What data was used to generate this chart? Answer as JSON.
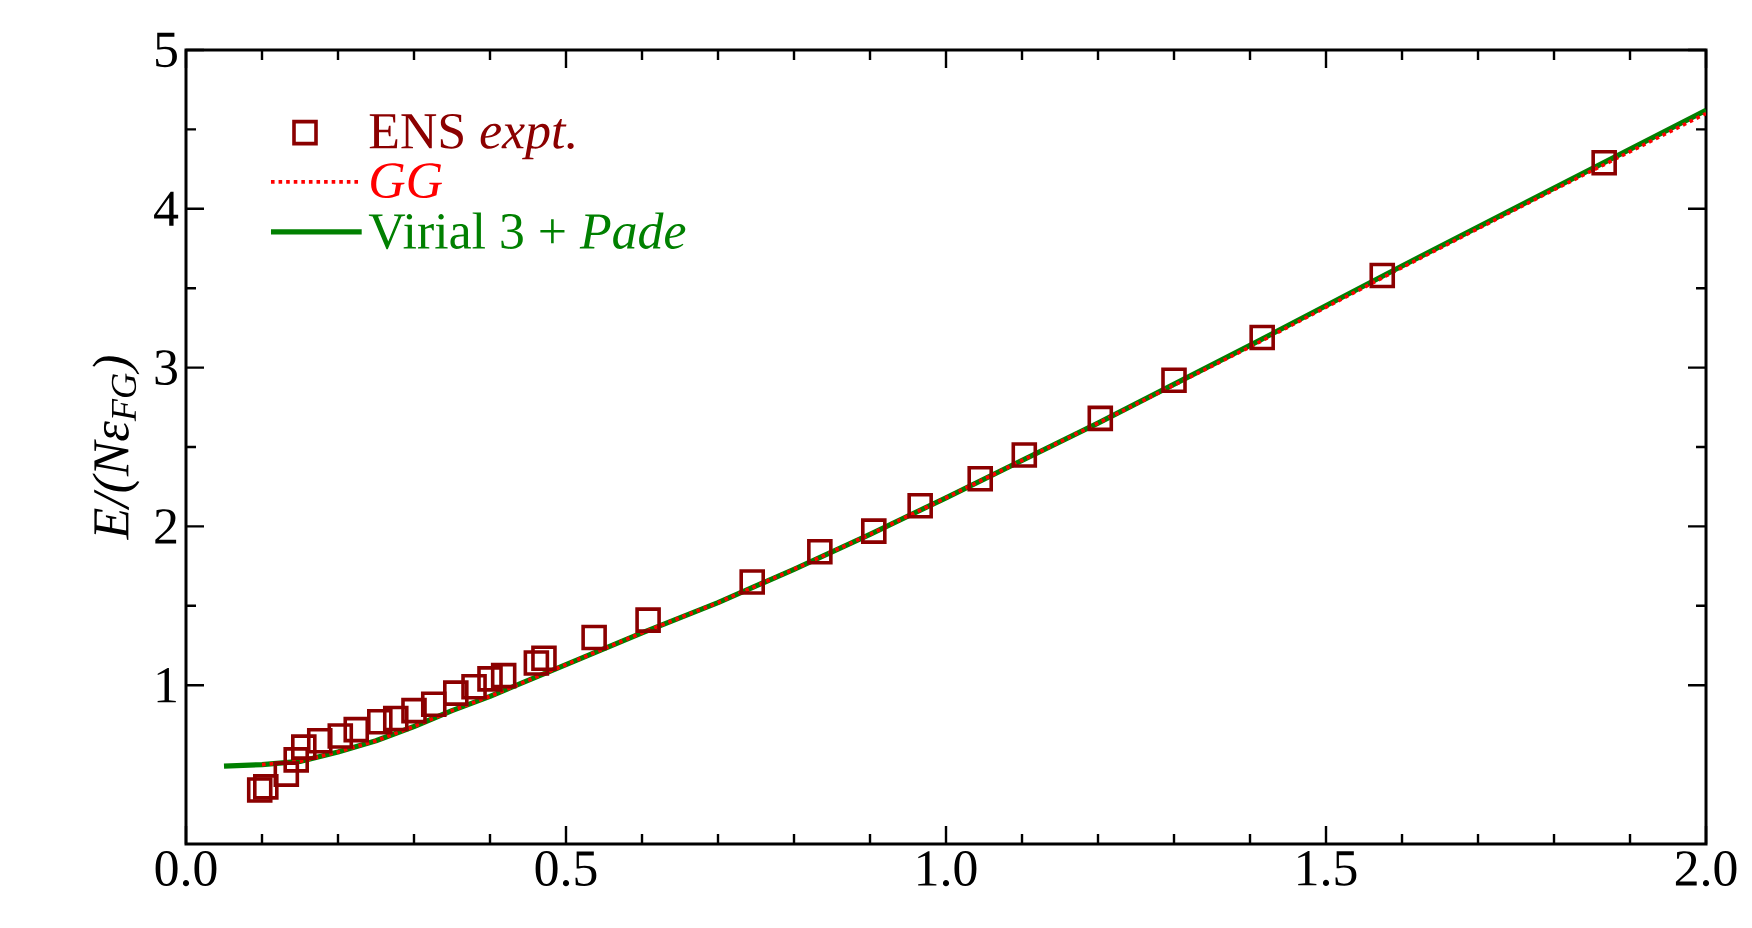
{
  "chart_data": {
    "type": "line",
    "ylabel": "E/(Nε$_{FG}$)",
    "xlim": [
      0,
      2
    ],
    "ylim": [
      0,
      5
    ],
    "xticks": [
      {
        "value": 0,
        "label": "0.0"
      },
      {
        "value": 0.5,
        "label": "0.5"
      },
      {
        "value": 1,
        "label": "1.0"
      },
      {
        "value": 1.5,
        "label": "1.5"
      },
      {
        "value": 2,
        "label": "2.0"
      }
    ],
    "yticks": [
      1,
      2,
      3,
      4,
      5
    ],
    "legend": "top left",
    "grid": false,
    "series": [
      {
        "name": "ENS *expt.*",
        "type": "scatter",
        "marker": "square",
        "color": "#8b0000",
        "x": [
          0.097,
          0.105,
          0.132,
          0.145,
          0.155,
          0.176,
          0.203,
          0.224,
          0.255,
          0.276,
          0.3,
          0.326,
          0.355,
          0.379,
          0.4,
          0.418,
          0.461,
          0.471,
          0.537,
          0.608,
          0.745,
          0.834,
          0.905,
          0.966,
          1.045,
          1.103,
          1.203,
          1.3,
          1.416,
          1.574,
          1.866
        ],
        "values": [
          0.34,
          0.36,
          0.44,
          0.53,
          0.61,
          0.65,
          0.68,
          0.72,
          0.77,
          0.79,
          0.84,
          0.88,
          0.95,
          0.99,
          1.04,
          1.06,
          1.14,
          1.17,
          1.3,
          1.41,
          1.65,
          1.84,
          1.97,
          2.13,
          2.3,
          2.45,
          2.68,
          2.92,
          3.19,
          3.58,
          4.29
        ]
      },
      {
        "name": "*GG*",
        "line_style": "dotted",
        "color": "#ff0000",
        "x": [
          0.1,
          0.15,
          0.2,
          0.25,
          0.3,
          0.35,
          0.4,
          0.5,
          0.6,
          0.7,
          0.8,
          0.9,
          1.0,
          1.2,
          1.4,
          1.6,
          1.8,
          2.0
        ],
        "values": [
          0.5,
          0.52,
          0.58,
          0.65,
          0.74,
          0.84,
          0.93,
          1.13,
          1.33,
          1.52,
          1.73,
          1.95,
          2.18,
          2.65,
          3.13,
          3.63,
          4.12,
          4.6
        ]
      },
      {
        "name": "Virial 3 + *Pade*",
        "line_style": "solid",
        "color": "#008000",
        "x": [
          0.05,
          0.1,
          0.15,
          0.2,
          0.25,
          0.3,
          0.35,
          0.4,
          0.5,
          0.6,
          0.7,
          0.8,
          0.9,
          1.0,
          1.2,
          1.4,
          1.6,
          1.8,
          2.0
        ],
        "values": [
          0.49,
          0.5,
          0.52,
          0.58,
          0.65,
          0.74,
          0.84,
          0.93,
          1.13,
          1.33,
          1.52,
          1.73,
          1.95,
          2.18,
          2.65,
          3.14,
          3.64,
          4.13,
          4.62
        ]
      }
    ]
  }
}
